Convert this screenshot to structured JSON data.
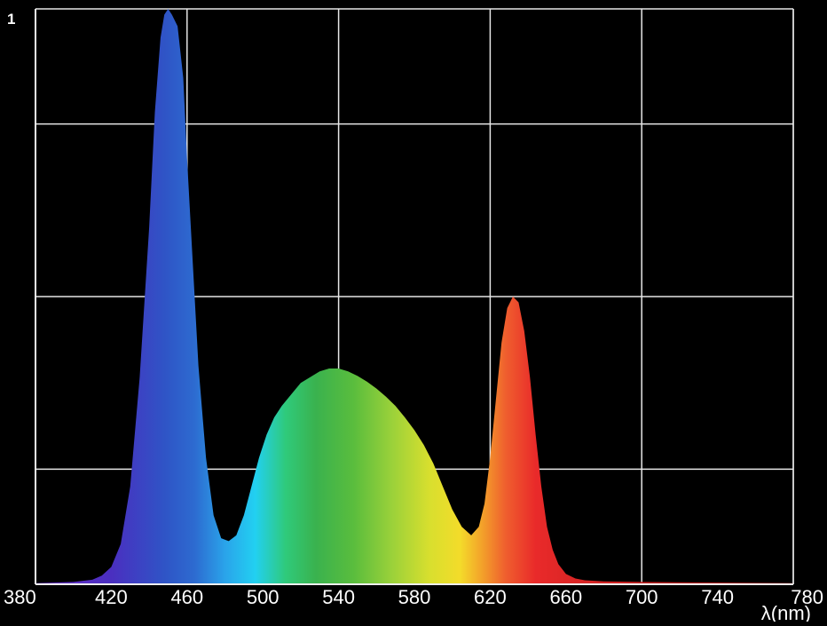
{
  "chart_data": {
    "type": "area",
    "title": "",
    "xlabel": "λ(nm)",
    "ylabel": "",
    "xlim": [
      380,
      780
    ],
    "ylim": [
      0,
      1
    ],
    "grid": true,
    "y_tick_label": "1",
    "x_ticks": [
      380,
      420,
      460,
      500,
      540,
      580,
      620,
      660,
      700,
      740,
      780
    ],
    "x_tick_labels": [
      "380",
      "420",
      "460",
      "500",
      "540",
      "580",
      "620",
      "660",
      "700",
      "740",
      "780"
    ],
    "y_grid": [
      0.2,
      0.5,
      0.8,
      1
    ],
    "x": [
      380,
      400,
      410,
      415,
      420,
      425,
      430,
      435,
      440,
      443,
      446,
      448,
      450,
      452,
      455,
      458,
      460,
      463,
      466,
      470,
      474,
      478,
      482,
      486,
      490,
      494,
      498,
      502,
      506,
      510,
      515,
      520,
      525,
      530,
      535,
      540,
      545,
      550,
      555,
      560,
      565,
      570,
      575,
      580,
      585,
      590,
      595,
      600,
      605,
      610,
      614,
      617,
      620,
      623,
      626,
      629,
      632,
      635,
      638,
      641,
      644,
      647,
      650,
      653,
      656,
      660,
      665,
      670,
      680,
      700,
      740,
      780
    ],
    "values": [
      0.002,
      0.004,
      0.008,
      0.015,
      0.03,
      0.07,
      0.17,
      0.36,
      0.62,
      0.82,
      0.95,
      0.99,
      1.0,
      0.99,
      0.97,
      0.88,
      0.74,
      0.56,
      0.38,
      0.22,
      0.12,
      0.08,
      0.075,
      0.085,
      0.12,
      0.17,
      0.22,
      0.26,
      0.29,
      0.31,
      0.33,
      0.35,
      0.36,
      0.37,
      0.375,
      0.375,
      0.37,
      0.362,
      0.352,
      0.34,
      0.326,
      0.31,
      0.29,
      0.268,
      0.242,
      0.21,
      0.17,
      0.13,
      0.1,
      0.085,
      0.1,
      0.14,
      0.22,
      0.32,
      0.42,
      0.48,
      0.5,
      0.49,
      0.44,
      0.36,
      0.26,
      0.17,
      0.1,
      0.06,
      0.035,
      0.018,
      0.01,
      0.007,
      0.005,
      0.004,
      0.003,
      0.002
    ]
  }
}
